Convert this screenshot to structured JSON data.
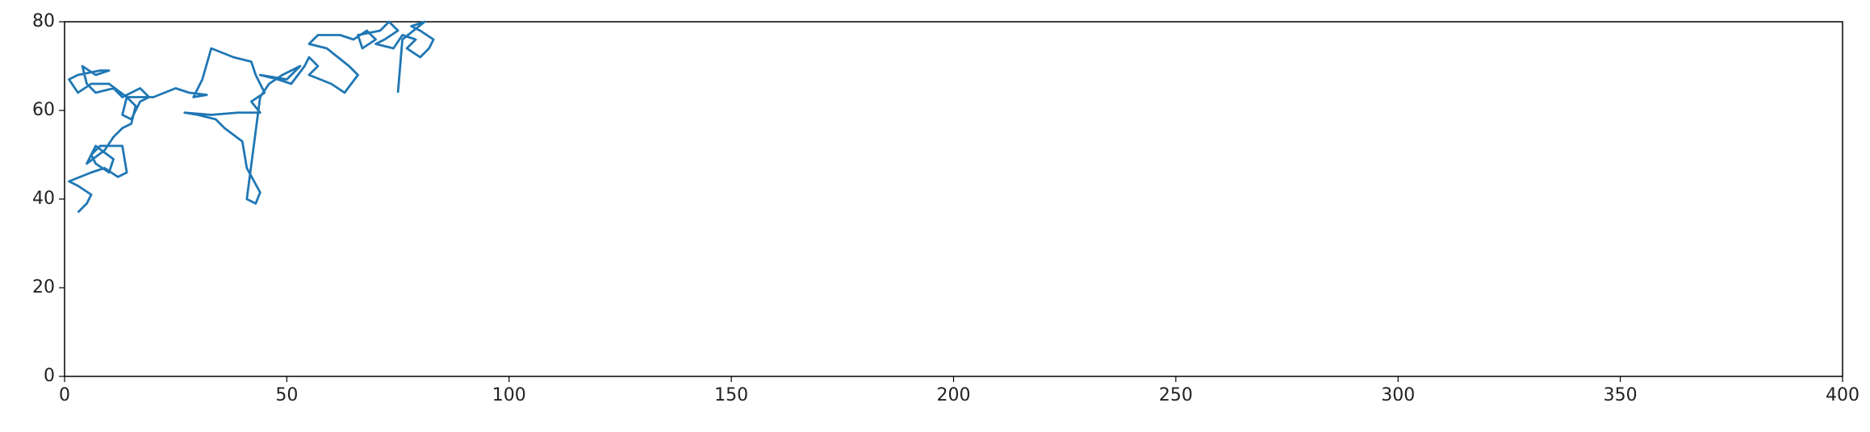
{
  "chart_data": {
    "type": "line",
    "x": [
      3,
      5,
      6,
      3,
      1,
      6,
      9,
      12,
      14,
      13,
      8,
      6,
      7,
      10,
      11,
      7,
      5,
      9,
      11,
      13,
      15,
      16,
      14,
      13,
      15,
      17,
      19,
      17,
      13,
      11,
      7,
      5,
      4,
      7,
      10,
      8,
      3,
      1,
      3,
      6,
      10,
      14,
      20,
      25,
      28,
      32,
      29,
      31,
      33,
      38,
      42,
      43,
      45,
      42,
      44,
      39,
      33,
      27,
      30,
      34,
      36,
      40,
      41,
      44,
      43,
      41,
      44,
      46,
      49,
      53,
      50,
      44,
      48,
      51,
      54,
      55,
      57,
      55,
      60,
      63,
      66,
      64,
      59,
      55,
      57,
      62,
      65,
      68,
      70,
      67,
      66,
      71,
      73,
      75,
      72,
      70,
      74,
      76,
      79,
      77,
      80,
      82,
      83,
      80,
      78,
      81,
      76,
      75
    ],
    "values": [
      37,
      39,
      41,
      43,
      44,
      46,
      47,
      45,
      46,
      52,
      52,
      50,
      48,
      46,
      49,
      52,
      48,
      51,
      54,
      56,
      57,
      61,
      63,
      59,
      58,
      62,
      63,
      65,
      63,
      65,
      64,
      66,
      70,
      68,
      69,
      69,
      68,
      67,
      64,
      66,
      66,
      63,
      63,
      65,
      64,
      63.5,
      63,
      67,
      74,
      72,
      71,
      68,
      64,
      62,
      59.5,
      59.5,
      59,
      59.5,
      59,
      58,
      56,
      53,
      47,
      41.5,
      39,
      40,
      63,
      66,
      68,
      70,
      67,
      68,
      67,
      66,
      70,
      72,
      70,
      68,
      66,
      64,
      68,
      70,
      74,
      75,
      77,
      77,
      76,
      78,
      76,
      74,
      77,
      78,
      80,
      78,
      76,
      75,
      74,
      77,
      76,
      74,
      72,
      74,
      76,
      78,
      79,
      80,
      76,
      64
    ],
    "color": "#1f77b4",
    "xlim": [
      0,
      400
    ],
    "xticks": [
      0,
      50,
      100,
      150,
      200,
      250,
      300,
      350,
      400
    ],
    "ylim": [
      0,
      80
    ],
    "yticks": [
      0,
      20,
      40,
      60,
      80
    ]
  }
}
